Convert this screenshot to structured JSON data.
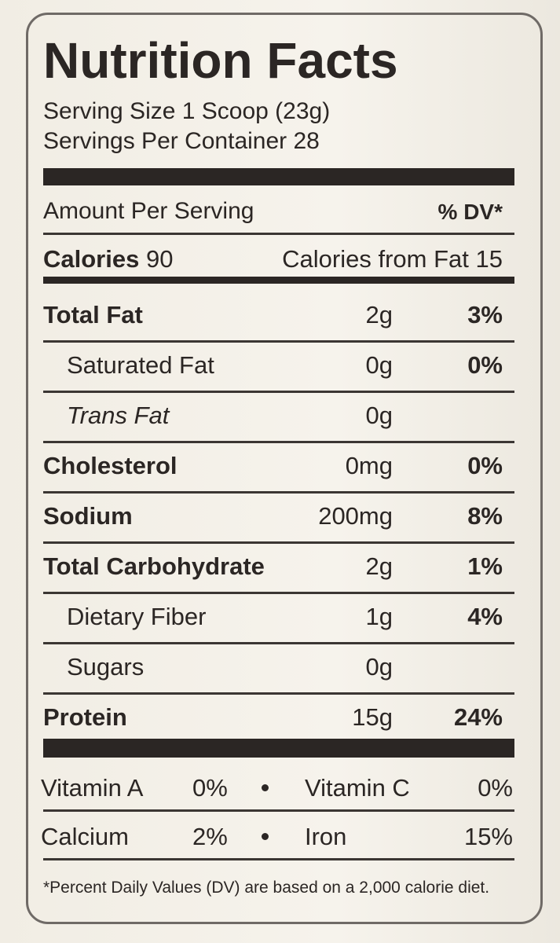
{
  "label": {
    "title": "Nutrition Facts",
    "serving_size": "Serving Size 1 Scoop (23g)",
    "servings_per_container": "Servings Per Container 28",
    "amount_per_serving": "Amount Per Serving",
    "dv_header": "% DV*",
    "calories_label": "Calories",
    "calories_value": "90",
    "calories_from_fat": "Calories from Fat 15",
    "rows": [
      {
        "name": "Total Fat",
        "amount": "2g",
        "dv": "3%"
      },
      {
        "name": "Saturated Fat",
        "amount": "0g",
        "dv": "0%"
      },
      {
        "name": "Trans Fat",
        "amount": "0g"
      },
      {
        "name": "Cholesterol",
        "amount": "0mg",
        "dv": "0%"
      },
      {
        "name": "Sodium",
        "amount": "200mg",
        "dv": "8%"
      },
      {
        "name": "Total Carbohydrate",
        "amount": "2g",
        "dv": "1%"
      },
      {
        "name": "Dietary Fiber",
        "amount": "1g",
        "dv": "4%"
      },
      {
        "name": "Sugars",
        "amount": "0g"
      },
      {
        "name": "Protein",
        "amount": "15g",
        "dv": "24%"
      }
    ],
    "vitamins": [
      [
        {
          "name": "Vitamin A",
          "dv": "0%"
        },
        {
          "name": "Vitamin C",
          "dv": "0%"
        }
      ],
      [
        {
          "name": "Calcium",
          "dv": "2%"
        },
        {
          "name": "Iron",
          "dv": "15%"
        }
      ]
    ],
    "footnote": "*Percent Daily Values (DV) are based on a 2,000 calorie diet."
  }
}
